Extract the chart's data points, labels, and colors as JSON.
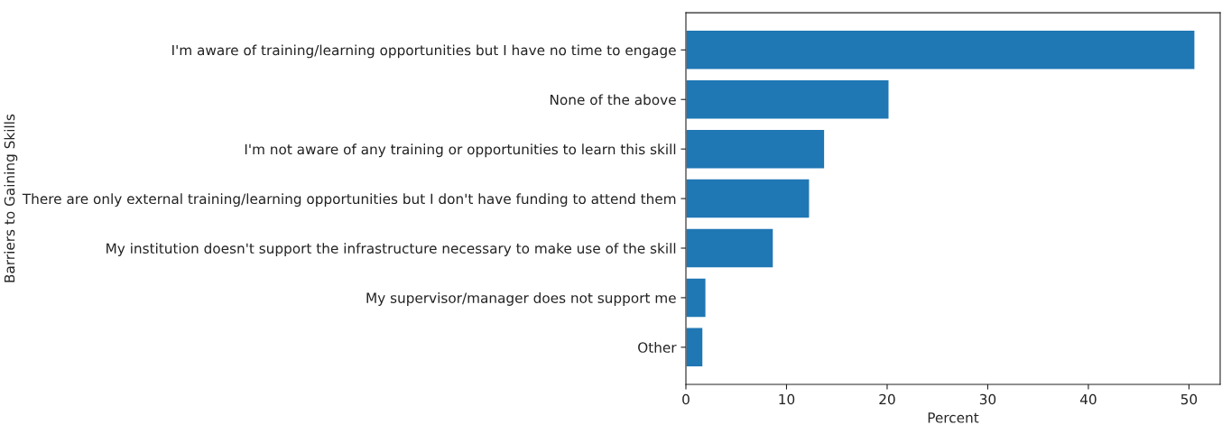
{
  "chart_data": {
    "type": "bar",
    "orientation": "horizontal",
    "xlabel": "Percent",
    "ylabel": "Barriers to Gaining Skills",
    "categories": [
      "I'm aware of training/learning opportunities but I have no time to engage",
      "None of the above",
      "I'm not aware of any training or opportunities to learn this skill",
      "There are only external training/learning opportunities but I don't have funding to attend them",
      "My institution doesn't support the infrastructure necessary to make use of the skill",
      "My supervisor/manager does not support me",
      "Other"
    ],
    "values": [
      50.6,
      20.2,
      13.8,
      12.3,
      8.7,
      2.0,
      1.7
    ],
    "color": "#1f77b4",
    "xlim": [
      0,
      53.1
    ],
    "xticks": [
      0,
      10,
      20,
      30,
      40,
      50
    ],
    "grid": false,
    "legend": false
  }
}
